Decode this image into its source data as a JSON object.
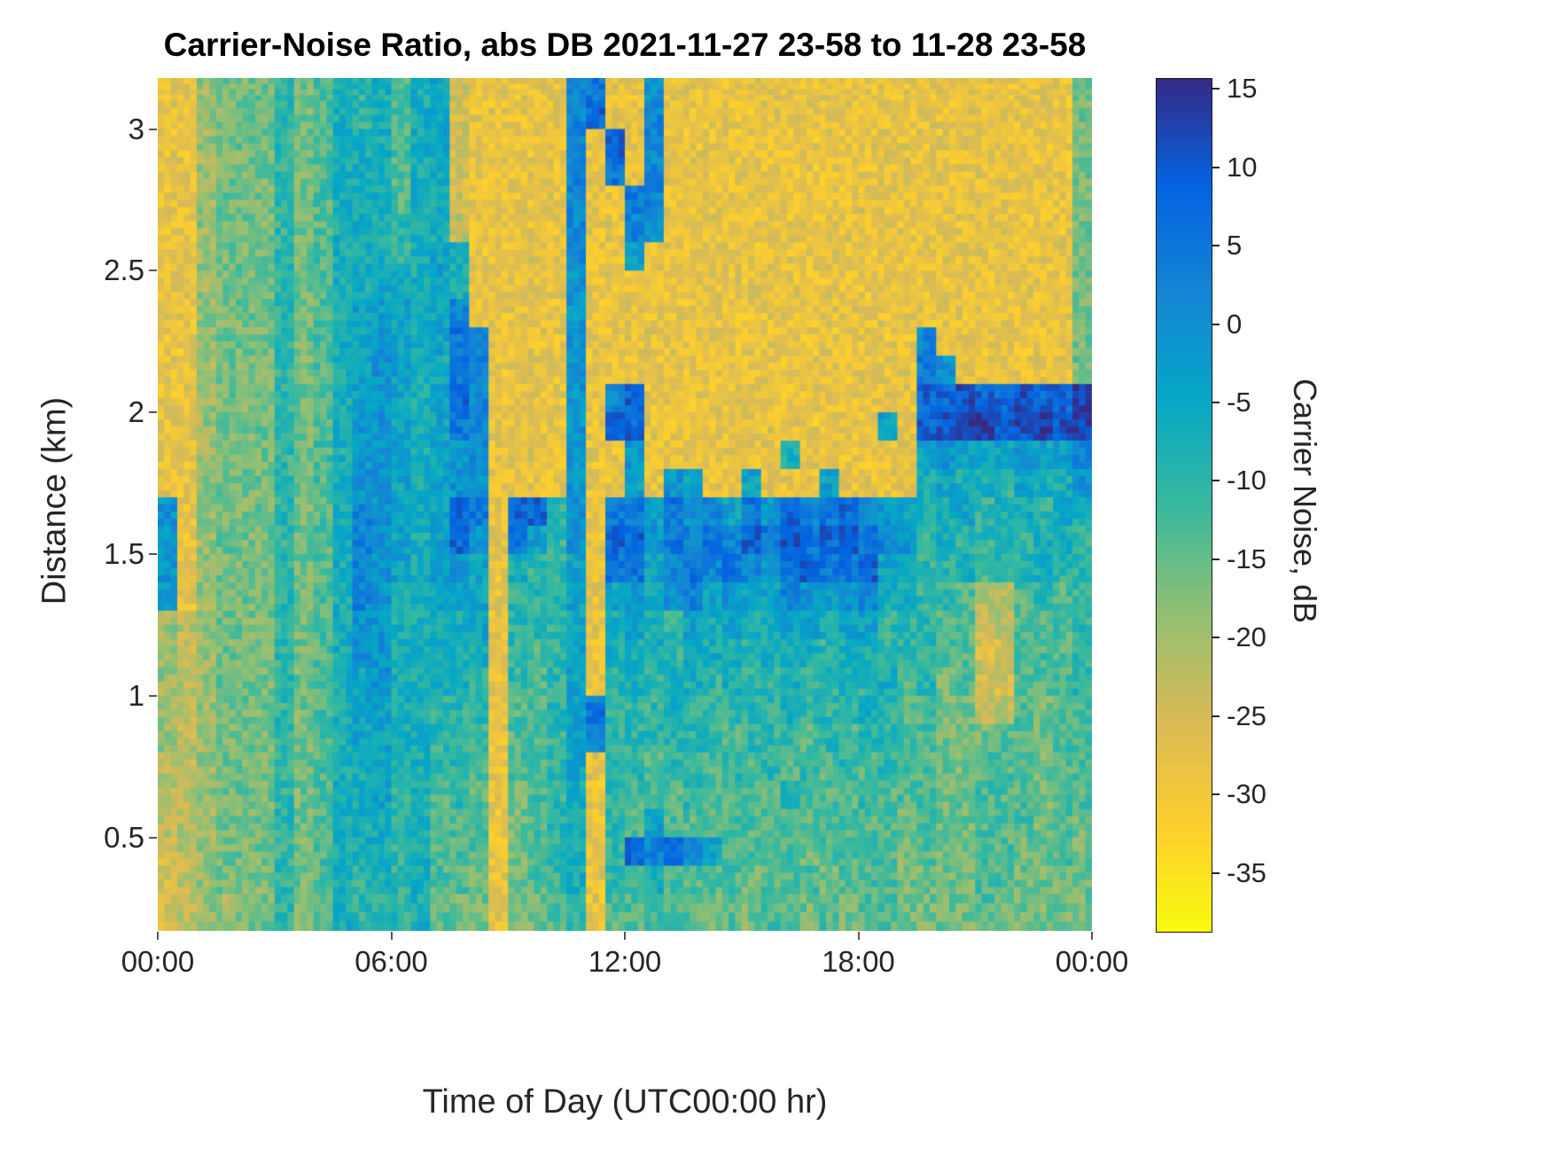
{
  "chart_data": {
    "type": "heatmap",
    "title": "Carrier-Noise Ratio, abs DB 2021-11-27 23-58 to 11-28 23-58",
    "xlabel": "Time of Day (UTC00:00 hr)",
    "ylabel": "Distance (km)",
    "x_axis": {
      "range_hours": [
        0,
        24
      ],
      "ticks": [
        {
          "hour": 0,
          "label": "00:00"
        },
        {
          "hour": 6,
          "label": "06:00"
        },
        {
          "hour": 12,
          "label": "12:00"
        },
        {
          "hour": 18,
          "label": "18:00"
        },
        {
          "hour": 24,
          "label": "00:00"
        }
      ]
    },
    "y_axis": {
      "range_km": [
        0.17,
        3.18
      ],
      "ticks": [
        {
          "km": 0.5,
          "label": "0.5"
        },
        {
          "km": 1,
          "label": "1"
        },
        {
          "km": 1.5,
          "label": "1.5"
        },
        {
          "km": 2,
          "label": "2"
        },
        {
          "km": 2.5,
          "label": "2.5"
        },
        {
          "km": 3,
          "label": "3"
        }
      ]
    },
    "colorbar": {
      "label": "Carrier Noise, dB",
      "ticks": [
        {
          "value": 15,
          "label": "15"
        },
        {
          "value": 10,
          "label": "10"
        },
        {
          "value": 5,
          "label": "5"
        },
        {
          "value": 0,
          "label": "0"
        },
        {
          "value": -5,
          "label": "-5"
        },
        {
          "value": -10,
          "label": "-10"
        },
        {
          "value": -15,
          "label": "-15"
        },
        {
          "value": -20,
          "label": "-20"
        },
        {
          "value": -25,
          "label": "-25"
        },
        {
          "value": -30,
          "label": "-30"
        },
        {
          "value": -35,
          "label": "-35"
        }
      ]
    },
    "color_axis": {
      "min": -38.7,
      "max": 15.7,
      "units": "dB"
    },
    "colormap": {
      "name": "parula-reversed-high-is-dark-blue",
      "stops": [
        [
          0.0,
          "#352a87"
        ],
        [
          0.125,
          "#0363e1"
        ],
        [
          0.25,
          "#1485d4"
        ],
        [
          0.375,
          "#06a7c6"
        ],
        [
          0.5,
          "#38b99e"
        ],
        [
          0.625,
          "#92bf73"
        ],
        [
          0.75,
          "#d9ba56"
        ],
        [
          0.875,
          "#fcce2e"
        ],
        [
          1.0,
          "#f9fb0e"
        ]
      ]
    },
    "value_levels": {
      "0": -32,
      "1": -28,
      "2": -25,
      "3": -22,
      "4": -19,
      "5": -16,
      "6": -13,
      "7": -10,
      "8": -7,
      "9": -4,
      "a": -1,
      "b": 2,
      "c": 5,
      "d": 8,
      "e": 11,
      "f": 14
    },
    "grid": {
      "cols": 48,
      "rows": 30,
      "time_start_hour": 0,
      "time_step_hours": 0.5,
      "distance_top_km": 3.2,
      "distance_step_km": 0.1,
      "noise_db": 9,
      "row_segments": [
        [
          "11",
          "455",
          "57568",
          "7868",
          "9211",
          "111",
          "bc1",
          "1a11",
          "1111111111",
          "11",
          "11111115"
        ],
        [
          "11",
          "455",
          "57568",
          "7868",
          "9211",
          "111",
          "bd1",
          "1b11",
          "1111111111",
          "11",
          "11111115"
        ],
        [
          "11",
          "455",
          "57568",
          "8868",
          "9211",
          "111",
          "b1d",
          "1b11",
          "1111111111",
          "11",
          "11111115"
        ],
        [
          "11",
          "455",
          "57568",
          "8868",
          "8211",
          "111",
          "b1c",
          "1b11",
          "1111111111",
          "11",
          "11111115"
        ],
        [
          "11",
          "455",
          "57568",
          "8868",
          "8211",
          "111",
          "b11",
          "cb11",
          "1111111111",
          "11",
          "11111115"
        ],
        [
          "11",
          "455",
          "57568",
          "8878",
          "8311",
          "111",
          "b11",
          "ba11",
          "1111111111",
          "11",
          "11111115"
        ],
        [
          "11",
          "455",
          "57568",
          "8878",
          "9811",
          "111",
          "b11",
          "9111",
          "1111111111",
          "11",
          "11111115"
        ],
        [
          "11",
          "455",
          "57568",
          "8988",
          "9811",
          "111",
          "a11",
          "1111",
          "1111111111",
          "11",
          "11111115"
        ],
        [
          "11",
          "455",
          "57568",
          "9998",
          "9b11",
          "111",
          "a11",
          "1111",
          "1111111111",
          "11",
          "11111115"
        ],
        [
          "11",
          "455",
          "57568",
          "9a98",
          "9cb1",
          "111",
          "a11",
          "1111",
          "1111111111",
          "1b",
          "11111115"
        ],
        [
          "11",
          "455",
          "57568",
          "9a98",
          "8cb1",
          "111",
          "a11",
          "1111",
          "1111111111",
          "1c",
          "a1111115"
        ],
        [
          "11",
          "455",
          "57568",
          "9a98",
          "9db1",
          "111",
          "a1b",
          "d111",
          "1111111111",
          "1d",
          "deddeddf"
        ],
        [
          "11",
          "455",
          "57568",
          "aa98",
          "9cb1",
          "111",
          "a1d",
          "d111",
          "1111111119",
          "1d",
          "effeefef"
        ],
        [
          "11",
          "455",
          "57568",
          "aa98",
          "9ab1",
          "111",
          "a11",
          "a111",
          "1111811111",
          "19",
          "a999a99b"
        ],
        [
          "11",
          "455",
          "57568",
          "aa98",
          "9aa1",
          "111",
          "a11",
          "91a9",
          "1191119111",
          "18",
          "9887988a"
        ],
        [
          "a1",
          "455",
          "57568",
          "ba98",
          "9dc1",
          "dd7",
          "a1c",
          "c9ca",
          "b9cadbcdba",
          "98",
          "89788798"
        ],
        [
          "a1",
          "455",
          "57568",
          "ba98",
          "9da1",
          "c97",
          "a1d",
          "dacb",
          "cbdcecdecb",
          "a7",
          "87787887"
        ],
        [
          "a1",
          "455",
          "57568",
          "ba98",
          "9a91",
          "877",
          "91c",
          "c9bc",
          "bcbacdccd9",
          "97",
          "78677877"
        ],
        [
          "91",
          "455",
          "57568",
          "ba88",
          "9991",
          "777",
          "919",
          "a8ab",
          "9a99ba9ab8",
          "87",
          "76336767"
        ],
        [
          "43",
          "455",
          "57568",
          "aa88",
          "8891",
          "777",
          "918",
          "9879",
          "8988998997",
          "77",
          "66236667"
        ],
        [
          "43",
          "455",
          "57568",
          "aa88",
          "8881",
          "767",
          "918",
          "8878",
          "8878887887",
          "77",
          "66226667"
        ],
        [
          "43",
          "455",
          "57568",
          "9a88",
          "8871",
          "767",
          "917",
          "8788",
          "7877877878",
          "67",
          "56226667"
        ],
        [
          "43",
          "455",
          "57568",
          "9988",
          "7771",
          "667",
          "9c7",
          "7787",
          "7777877787",
          "66",
          "55236566"
        ],
        [
          "43",
          "455",
          "57568",
          "9988",
          "7761",
          "667",
          "9b7",
          "7777",
          "7677767677",
          "66",
          "55566566"
        ],
        [
          "33",
          "455",
          "57568",
          "8988",
          "7761",
          "667",
          "917",
          "7677",
          "6767676767",
          "66",
          "55666566"
        ],
        [
          "33",
          "455",
          "57568",
          "8978",
          "6761",
          "567",
          "817",
          "6667",
          "6666766676",
          "66",
          "55666566"
        ],
        [
          "33",
          "455",
          "57568",
          "8878",
          "6661",
          "567",
          "817",
          "6966",
          "6666666666",
          "56",
          "55666565"
        ],
        [
          "23",
          "455",
          "57568",
          "8878",
          "6661",
          "567",
          "817",
          "dbdb",
          "9666656666",
          "56",
          "55665565"
        ],
        [
          "23",
          "455",
          "57568",
          "7878",
          "6651",
          "567",
          "817",
          "6866",
          "6656665666",
          "55",
          "55665555"
        ],
        [
          "23",
          "445",
          "57568",
          "7778",
          "6551",
          "556",
          "716",
          "6666",
          "5656656566",
          "55",
          "55655555"
        ]
      ]
    }
  }
}
